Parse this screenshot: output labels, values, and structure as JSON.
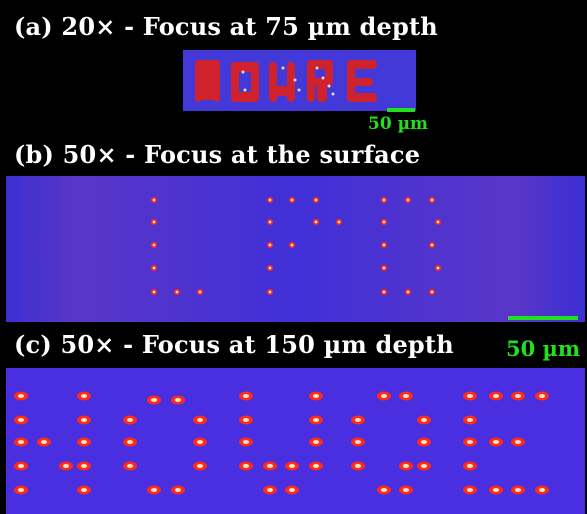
{
  "panels": {
    "a": {
      "title": "(a) 20× - Focus at 75 µm depth",
      "scale": "50 µm"
    },
    "b": {
      "title": "(b) 50× - Focus at the surface",
      "scale": "50 µm"
    },
    "c": {
      "title": "(c) 50× - Focus at 150 µm depth"
    }
  },
  "colors": {
    "background": "#000000",
    "field": "#4a2fe0",
    "dot": "#ff3020",
    "scale_bar": "#22e020"
  }
}
